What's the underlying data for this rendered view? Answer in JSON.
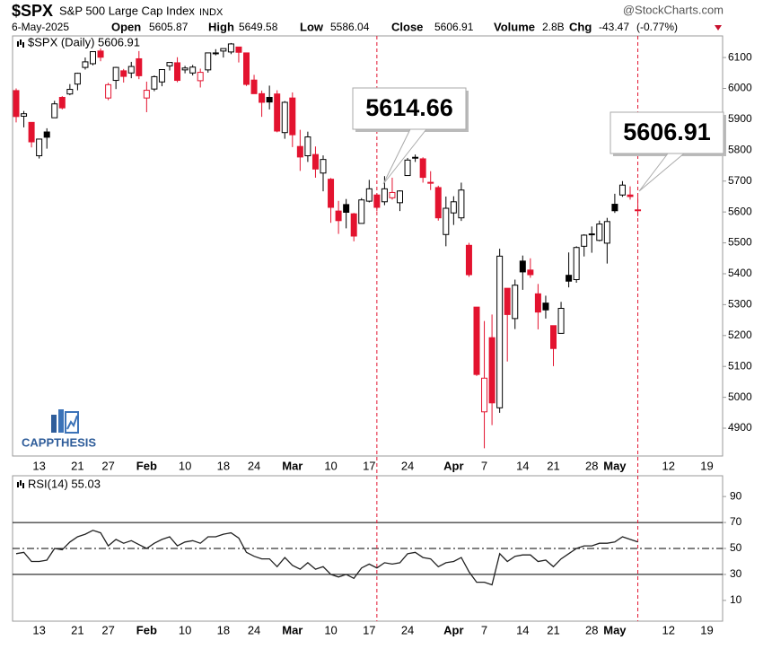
{
  "header": {
    "symbol": "$SPX",
    "name": "S&P 500 Large Cap Index",
    "exchange": "INDX",
    "source": "@StockCharts.com",
    "date": "6-May-2025",
    "open_label": "Open",
    "open": 5605.87,
    "high_label": "High",
    "high": 5649.58,
    "low_label": "Low",
    "low": 5586.04,
    "close_label": "Close",
    "close": 5606.91,
    "volume_label": "Volume",
    "volume": "2.8B",
    "chg_label": "Chg",
    "chg": -43.47,
    "chg_pct": "(-0.77%)",
    "logo": "CAPPTHESIS"
  },
  "chart_data": [
    {
      "type": "candlestick",
      "legend_label": "$SPX (Daily) 5606.91",
      "annotations": [
        "5614.66",
        "5606.91"
      ],
      "up_color": "#000000",
      "down_color": "#e3132f",
      "categories": [
        null,
        null,
        null,
        "13",
        null,
        null,
        null,
        null,
        "21",
        null,
        null,
        null,
        "27",
        null,
        null,
        null,
        null,
        "Feb",
        null,
        null,
        null,
        null,
        "10",
        null,
        null,
        null,
        null,
        "18",
        null,
        null,
        null,
        "24",
        null,
        null,
        null,
        null,
        "Mar",
        null,
        null,
        null,
        null,
        "10",
        null,
        null,
        null,
        null,
        "17",
        null,
        null,
        null,
        null,
        "24",
        null,
        null,
        null,
        null,
        null,
        "Apr",
        null,
        null,
        null,
        "7",
        null,
        null,
        null,
        null,
        "14",
        null,
        null,
        null,
        "21",
        null,
        null,
        null,
        null,
        "28",
        null,
        null,
        "May",
        null,
        null,
        null,
        null,
        null,
        null,
        "12",
        null,
        null,
        null,
        null,
        "19"
      ],
      "open": [
        5993,
        5910,
        5890,
        5782,
        5859,
        5905,
        5971,
        5982,
        6014,
        6068,
        6080,
        6121,
        5969,
        6026,
        6057,
        6050,
        6096,
        5969,
        5998,
        6021,
        6073,
        6083,
        6060,
        6050,
        6025,
        6060,
        6115,
        6121,
        6118,
        6134,
        6115,
        6027,
        5983,
        5971,
        5982,
        5857,
        5969,
        5812,
        5782,
        5786,
        5726,
        5706,
        5603,
        5624,
        5594,
        5563,
        5635,
        5655,
        5633,
        5646,
        5630,
        5718,
        5775,
        5772,
        5696,
        5679,
        5527,
        5597,
        5581,
        5492,
        5292,
        4953,
        5193,
        4966,
        5353,
        5255,
        5441,
        5412,
        5335,
        5305,
        5232,
        5207,
        5395,
        5381,
        5489,
        5529,
        5508,
        5499,
        5625,
        5655,
        5655,
        5605.87,
        null,
        null,
        null,
        null,
        null,
        null,
        null,
        null,
        null
      ],
      "high": [
        6000,
        5927,
        5890,
        5837,
        5871,
        5960,
        5975,
        6014,
        6051,
        6100,
        6119,
        6129,
        6018,
        6070,
        6063,
        6086,
        6121,
        6022,
        6042,
        6062,
        6084,
        6101,
        6073,
        6076,
        6064,
        6116,
        6127,
        6129,
        6147,
        6134,
        6115,
        6044,
        5993,
        6009,
        5994,
        5959,
        5987,
        5866,
        5860,
        5812,
        5783,
        5710,
        5636,
        5642,
        5597,
        5645,
        5704,
        5659,
        5716,
        5711,
        5670,
        5775,
        5786,
        5777,
        5732,
        5685,
        5650,
        5651,
        5695,
        5500,
        5292,
        5247,
        5268,
        5481,
        5353,
        5381,
        5459,
        5450,
        5367,
        5329,
        5232,
        5309,
        5469,
        5489,
        5528,
        5553,
        5572,
        5581,
        5659,
        5700,
        5683,
        5649.58,
        null,
        null,
        null,
        null,
        null,
        null,
        null,
        null,
        null
      ],
      "low": [
        5890,
        5874,
        5809,
        5773,
        5805,
        5905,
        5932,
        5978,
        5994,
        6061,
        6075,
        6088,
        5962,
        5998,
        6019,
        6033,
        6030,
        5923,
        5991,
        6007,
        6058,
        6020,
        6049,
        6042,
        6003,
        6051,
        6107,
        6100,
        6111,
        6084,
        6008,
        5983,
        5908,
        5932,
        5858,
        5837,
        5810,
        5733,
        5762,
        5711,
        5667,
        5565,
        5529,
        5547,
        5505,
        5563,
        5631,
        5602,
        5622,
        5640,
        5603,
        5718,
        5762,
        5695,
        5671,
        5572,
        5489,
        5558,
        5571,
        5390,
        5069,
        4835,
        4910,
        4950,
        5116,
        5221,
        5348,
        5387,
        5220,
        5255,
        5101,
        5207,
        5356,
        5371,
        5456,
        5468,
        5505,
        5433,
        5597,
        5649,
        5640,
        5586.04,
        null,
        null,
        null,
        null,
        null,
        null,
        null,
        null,
        null
      ],
      "close": [
        5909,
        5918,
        5827,
        5836,
        5842,
        5950,
        5937,
        5997,
        6049,
        6086,
        6119,
        6101,
        6012,
        6068,
        6039,
        6071,
        6041,
        5994,
        6038,
        6061,
        6084,
        6026,
        6066,
        6069,
        6052,
        6115,
        6115,
        6129,
        6144,
        6117,
        6013,
        5983,
        5955,
        5956,
        5862,
        5955,
        5850,
        5778,
        5843,
        5739,
        5770,
        5615,
        5572,
        5599,
        5522,
        5639,
        5675,
        5615,
        5675,
        5663,
        5668,
        5768,
        5777,
        5712,
        5693,
        5581,
        5612,
        5633,
        5671,
        5397,
        5074,
        5062,
        4982,
        5457,
        5268,
        5363,
        5406,
        5397,
        5276,
        5283,
        5158,
        5288,
        5376,
        5485,
        5525,
        5529,
        5561,
        5569,
        5604,
        5687,
        5650,
        5606.91,
        null,
        null,
        null,
        null,
        null,
        null,
        null,
        null,
        null
      ],
      "ylim": [
        4810,
        6170
      ],
      "yticks": [
        4900,
        5000,
        5100,
        5200,
        5300,
        5400,
        5500,
        5600,
        5700,
        5800,
        5900,
        6000,
        6100
      ]
    },
    {
      "type": "line",
      "legend_label": "RSI(14) 55.03",
      "color": "#222222",
      "name": "RSI(14)",
      "values": [
        46,
        47,
        40,
        40,
        41,
        50,
        49,
        55,
        59,
        61,
        64,
        62,
        52,
        57,
        54,
        56,
        53,
        50,
        54,
        57,
        59,
        52,
        55,
        56,
        54,
        59,
        59,
        61,
        62,
        58,
        47,
        44,
        42,
        42,
        36,
        43,
        37,
        34,
        39,
        34,
        36,
        30,
        28,
        30,
        27,
        35,
        38,
        35,
        39,
        38,
        39,
        46,
        47,
        43,
        42,
        36,
        39,
        40,
        43,
        32,
        24,
        24,
        22,
        46,
        40,
        44,
        45,
        45,
        40,
        41,
        36,
        42,
        46,
        50,
        52,
        52,
        54,
        54,
        55,
        59,
        57,
        55.03,
        null,
        null,
        null,
        null,
        null,
        null,
        null,
        null,
        null
      ],
      "ylim": [
        -6,
        106
      ],
      "yticks": [
        10,
        30,
        50,
        70,
        90
      ]
    }
  ]
}
